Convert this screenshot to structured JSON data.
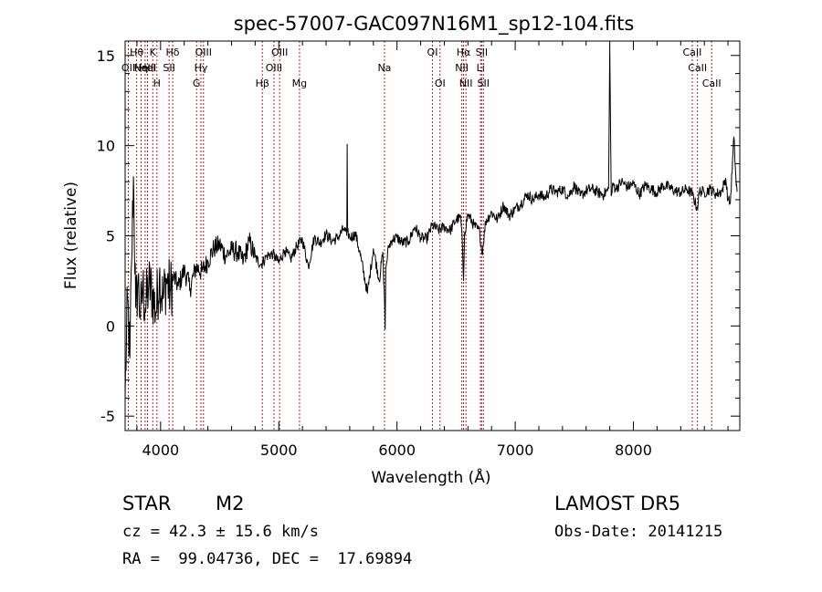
{
  "chart_data": {
    "type": "line",
    "title": "spec-57007-GAC097N16M1_sp12-104.fits",
    "xlabel": "Wavelength (Å)",
    "ylabel": "Flux (relative)",
    "xlim": [
      3700,
      8900
    ],
    "ylim": [
      -5.8,
      15.8
    ],
    "xticks": [
      4000,
      5000,
      6000,
      7000,
      8000
    ],
    "yticks": [
      -5,
      0,
      5,
      10,
      15
    ],
    "grid": false,
    "line_color": "#000000",
    "marker_color": "#aa2222",
    "series": [
      {
        "x": [
          3700,
          3720,
          3740,
          3755,
          3770,
          3790,
          3810,
          3830,
          3850,
          3870,
          3900,
          3930,
          3960,
          3990,
          4020,
          4050,
          4080,
          4110,
          4150,
          4200,
          4250,
          4300,
          4350,
          4400,
          4450,
          4500,
          4550,
          4600,
          4650,
          4700,
          4750,
          4800,
          4850,
          4900,
          4950,
          5000,
          5050,
          5100,
          5150,
          5200,
          5250,
          5300,
          5350,
          5400,
          5450,
          5500,
          5550,
          5575,
          5578,
          5582,
          5600,
          5650,
          5700,
          5750,
          5800,
          5850,
          5880,
          5895,
          5900,
          5905,
          5930,
          5960,
          6000,
          6050,
          6100,
          6150,
          6200,
          6250,
          6300,
          6350,
          6400,
          6450,
          6500,
          6540,
          6555,
          6563,
          6572,
          6600,
          6650,
          6700,
          6720,
          6750,
          6800,
          6850,
          6900,
          6950,
          7000,
          7050,
          7100,
          7150,
          7200,
          7250,
          7300,
          7350,
          7400,
          7450,
          7500,
          7550,
          7600,
          7650,
          7700,
          7750,
          7790,
          7800,
          7806,
          7812,
          7830,
          7850,
          7900,
          7950,
          8000,
          8050,
          8100,
          8150,
          8200,
          8250,
          8300,
          8350,
          8400,
          8450,
          8500,
          8540,
          8560,
          8600,
          8650,
          8700,
          8750,
          8780,
          8800,
          8820,
          8850,
          8870,
          8880
        ],
        "y": [
          -4.0,
          1.5,
          -1.8,
          3.5,
          8.3,
          1.0,
          2.5,
          0.5,
          2.2,
          1.0,
          2.3,
          1.8,
          0.8,
          2.8,
          1.5,
          2.6,
          1.9,
          2.7,
          2.2,
          3.1,
          2.1,
          3.3,
          3.0,
          3.6,
          4.3,
          4.5,
          3.9,
          4.2,
          4.1,
          3.6,
          4.7,
          3.8,
          3.4,
          3.9,
          4.0,
          3.5,
          4.2,
          3.7,
          4.4,
          4.8,
          3.3,
          4.9,
          4.6,
          5.1,
          4.7,
          4.9,
          5.4,
          5.0,
          10.1,
          5.2,
          4.9,
          5.1,
          3.6,
          1.8,
          4.3,
          2.5,
          4.1,
          1.2,
          -0.2,
          3.2,
          4.4,
          4.8,
          4.9,
          4.6,
          4.7,
          5.5,
          4.9,
          4.8,
          5.6,
          5.3,
          5.5,
          5.3,
          5.9,
          6.0,
          4.2,
          2.5,
          5.2,
          6.2,
          5.6,
          5.2,
          4.0,
          5.8,
          6.3,
          5.9,
          6.7,
          6.1,
          6.5,
          6.8,
          7.3,
          7.0,
          7.3,
          7.1,
          7.6,
          7.4,
          7.6,
          7.2,
          7.8,
          7.2,
          7.5,
          7.6,
          7.4,
          7.3,
          7.6,
          15.6,
          11.4,
          7.2,
          7.9,
          7.6,
          8.0,
          7.7,
          7.9,
          7.3,
          7.8,
          7.6,
          7.4,
          7.8,
          7.7,
          7.5,
          7.4,
          7.6,
          7.3,
          6.5,
          7.5,
          7.4,
          7.6,
          7.3,
          7.5,
          8.2,
          7.0,
          6.8,
          10.5,
          7.8,
          7.5
        ]
      }
    ],
    "lines": [
      {
        "x": 3727,
        "label": "OII",
        "row": 1
      },
      {
        "x": 3798,
        "label": "Hθ",
        "row": 0
      },
      {
        "x": 3835,
        "label": "Hη",
        "row": 1
      },
      {
        "x": 3869,
        "label": "NeIII",
        "row": 1
      },
      {
        "x": 3889,
        "label": "HeI",
        "row": 1
      },
      {
        "x": 3934,
        "label": "K",
        "row": 0
      },
      {
        "x": 3969,
        "label": "H",
        "row": 2
      },
      {
        "x": 4072,
        "label": "SII",
        "row": 1
      },
      {
        "x": 4102,
        "label": "Hδ",
        "row": 0
      },
      {
        "x": 4304,
        "label": "G",
        "row": 2
      },
      {
        "x": 4341,
        "label": "Hγ",
        "row": 1
      },
      {
        "x": 4363,
        "label": "OIII",
        "row": 0
      },
      {
        "x": 4861,
        "label": "Hβ",
        "row": 2
      },
      {
        "x": 4959,
        "label": "OIII",
        "row": 1
      },
      {
        "x": 5007,
        "label": "OIII",
        "row": 0
      },
      {
        "x": 5175,
        "label": "Mg",
        "row": 2
      },
      {
        "x": 5894,
        "label": "Na",
        "row": 1
      },
      {
        "x": 6300,
        "label": "OI",
        "row": 0
      },
      {
        "x": 6364,
        "label": "OI",
        "row": 2
      },
      {
        "x": 6548,
        "label": "NII",
        "row": 1
      },
      {
        "x": 6563,
        "label": "Hα",
        "row": 0
      },
      {
        "x": 6583,
        "label": "NII",
        "row": 2
      },
      {
        "x": 6707,
        "label": "Li",
        "row": 1
      },
      {
        "x": 6716,
        "label": "SII",
        "row": 0
      },
      {
        "x": 6731,
        "label": "SII",
        "row": 2
      },
      {
        "x": 8498,
        "label": "CaII",
        "row": 0
      },
      {
        "x": 8542,
        "label": "CaII",
        "row": 1
      },
      {
        "x": 8662,
        "label": "CaII",
        "row": 2
      }
    ]
  },
  "info": {
    "object_class": "STAR",
    "subclass": "M2",
    "survey": "LAMOST DR5",
    "cz": "cz = 42.3 ± 15.6 km/s",
    "obs_date": "Obs-Date: 20141215",
    "coords": "RA =  99.04736, DEC =  17.69894"
  }
}
